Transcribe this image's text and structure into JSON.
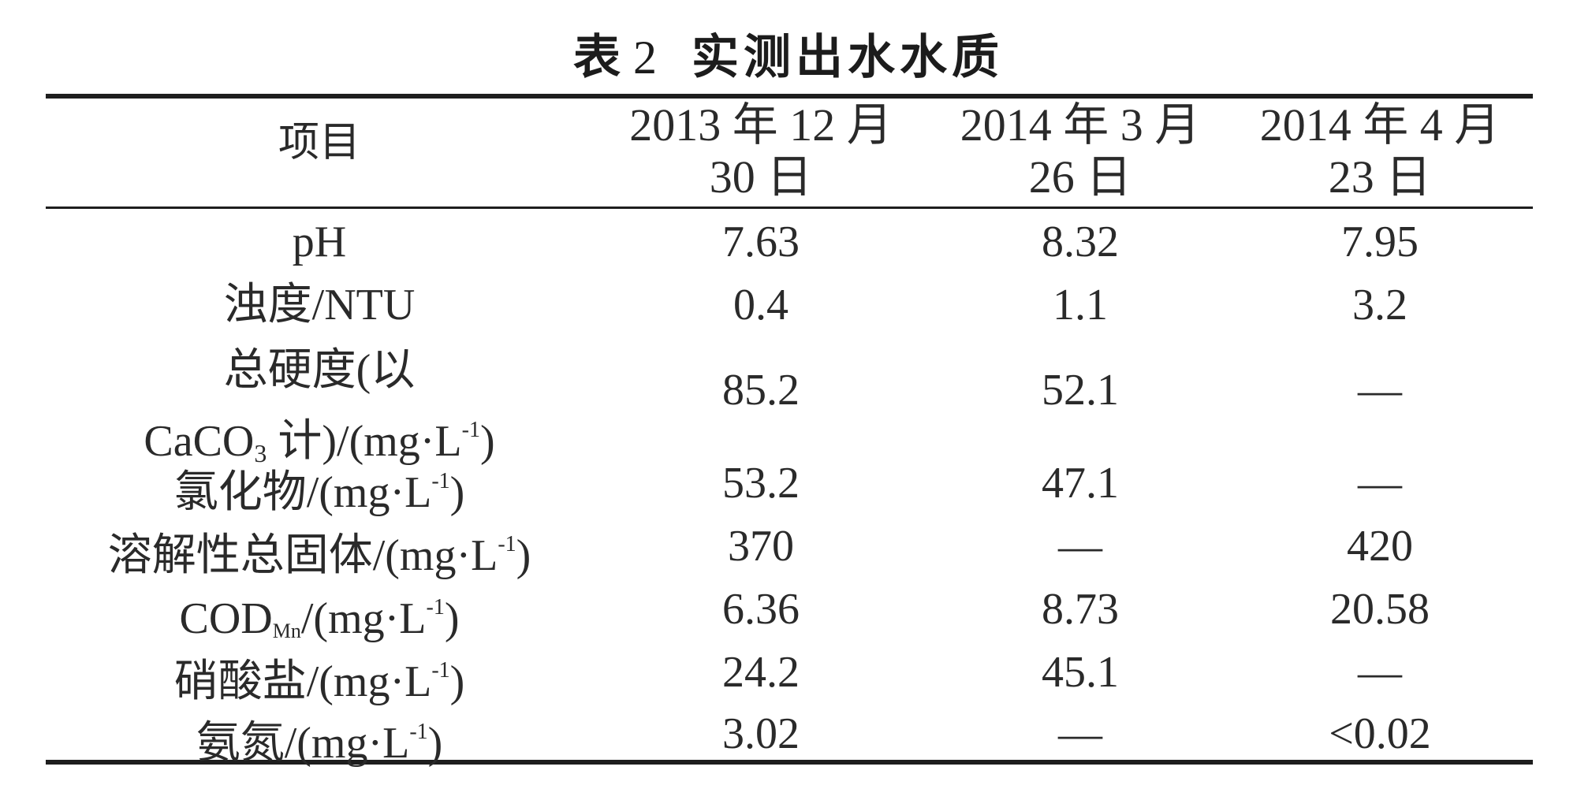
{
  "title": {
    "label": "表",
    "number": "2",
    "text": "实测出水水质"
  },
  "headers": {
    "item": "项目",
    "col1_line1": "2013 年 12 月",
    "col1_line2": "30 日",
    "col2_line1": "2014 年 3 月",
    "col2_line2": "26 日",
    "col3_line1": "2014 年 4 月",
    "col3_line2": "23 日"
  },
  "rows": [
    {
      "item": "pH",
      "v1": "7.63",
      "v2": "8.32",
      "v3": "7.95"
    },
    {
      "item": "浊度/NTU",
      "v1": "0.4",
      "v2": "1.1",
      "v3": "3.2"
    },
    {
      "item_line1": "总硬度(以",
      "item_caco": "CaCO",
      "item_sub": "3",
      "item_rest": " 计)/(mg·L",
      "item_sup": "-1",
      "item_close": ")",
      "v1": "85.2",
      "v2": "52.1",
      "v3": "—"
    },
    {
      "item_pre": "氯化物/(mg·L",
      "item_sup": "-1",
      "item_close": ")",
      "v1": "53.2",
      "v2": "47.1",
      "v3": "—"
    },
    {
      "item_pre": "溶解性总固体/(mg·L",
      "item_sup": "-1",
      "item_close": ")",
      "v1": "370",
      "v2": "—",
      "v3": "420"
    },
    {
      "item_pre": "COD",
      "item_sub": "Mn",
      "item_mid": "/(mg·L",
      "item_sup": "-1",
      "item_close": ")",
      "v1": "6.36",
      "v2": "8.73",
      "v3": "20.58"
    },
    {
      "item_pre": "硝酸盐/(mg·L",
      "item_sup": "-1",
      "item_close": ")",
      "v1": "24.2",
      "v2": "45.1",
      "v3": "—"
    },
    {
      "item_pre": "氨氮/(mg·L",
      "item_sup": "-1",
      "item_close": ")",
      "v1": "3.02",
      "v2": "—",
      "v3": "<0.02"
    }
  ]
}
